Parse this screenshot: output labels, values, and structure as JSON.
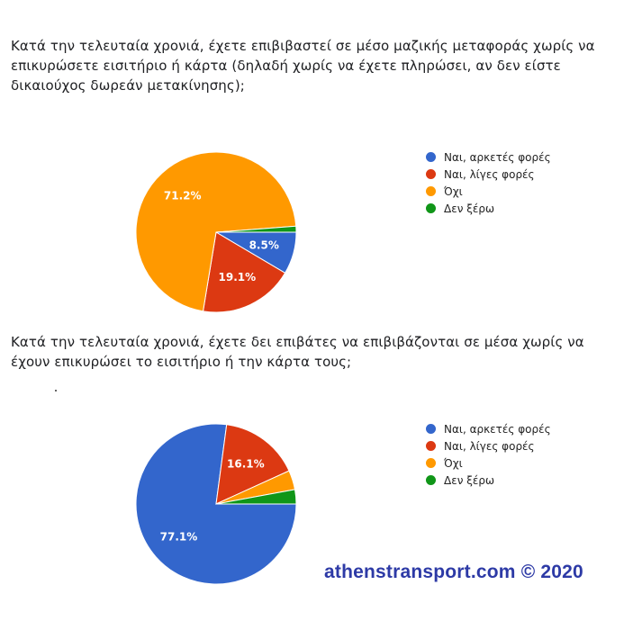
{
  "colors": {
    "blue": "#3366cc",
    "red": "#dc3912",
    "orange": "#ff9900",
    "green": "#109618"
  },
  "credit": "athenstransport.com © 2020",
  "chart_data": [
    {
      "type": "pie",
      "title": "Κατά την τελευταία χρονιά, έχετε επιβιβαστεί σε μέσο μαζικής μεταφοράς χωρίς να επικυρώσετε εισιτήριο ή κάρτα (δηλαδή χωρίς να έχετε πληρώσει, αν δεν είστε δικαιούχος δωρεάν μετακίνησης);",
      "categories": [
        "Ναι, αρκετές φορές",
        "Ναι, λίγες φορές",
        "Όχι",
        "Δεν ξέρω"
      ],
      "values": [
        8.5,
        19.1,
        71.2,
        1.2
      ],
      "labels": [
        "8.5%",
        "19.1%",
        "71.2%",
        ""
      ],
      "colors": [
        "#3366cc",
        "#dc3912",
        "#ff9900",
        "#109618"
      ],
      "legend": "right"
    },
    {
      "type": "pie",
      "title": "Κατά την τελευταία χρονιά, έχετε δει επιβάτες να επιβιβάζονται σε μέσα χωρίς να έχουν επικυρώσει το εισιτήριο ή την κάρτα τους;",
      "categories": [
        "Ναι, αρκετές φορές",
        "Ναι, λίγες φορές",
        "Όχι",
        "Δεν ξέρω"
      ],
      "values": [
        77.1,
        16.1,
        3.9,
        2.9
      ],
      "labels": [
        "77.1%",
        "16.1%",
        "",
        ""
      ],
      "colors": [
        "#3366cc",
        "#dc3912",
        "#ff9900",
        "#109618"
      ],
      "legend": "right"
    }
  ]
}
